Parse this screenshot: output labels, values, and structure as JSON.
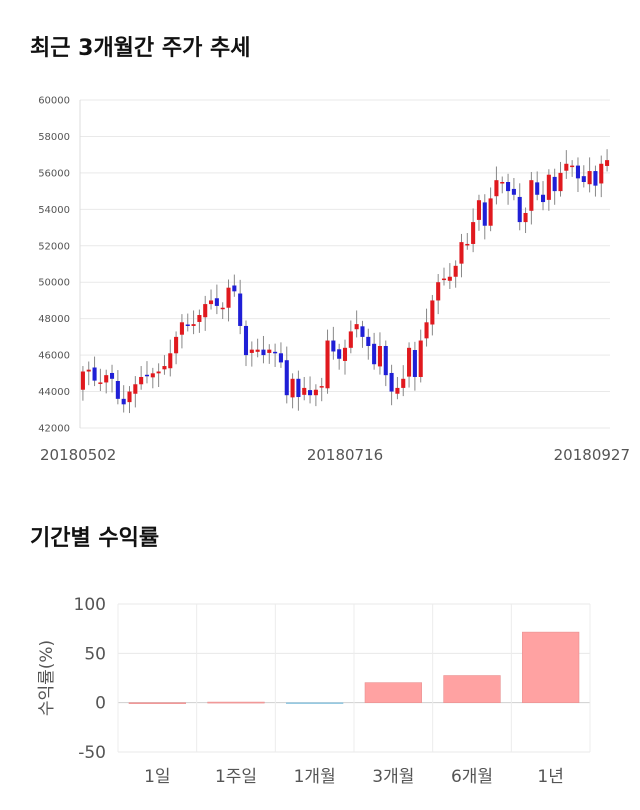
{
  "section1_title": "최근 3개월간 주가 추세",
  "section2_title": "기간별 수익률",
  "chart_data": [
    {
      "type": "candlestick",
      "title": "최근 3개월간 주가 추세",
      "ylim": [
        42000,
        60000
      ],
      "y_ticks": [
        60000,
        58000,
        56000,
        54000,
        52000,
        50000,
        48000,
        46000,
        44000,
        42000
      ],
      "x_tick_labels": [
        "20180502",
        "20180716",
        "20180927"
      ],
      "colors": {
        "up": "#e0191e",
        "down": "#1f1fd6",
        "wick": "#888888"
      },
      "grid": true,
      "close_series": [
        45100,
        45200,
        44600,
        44500,
        44900,
        44700,
        43600,
        43300,
        44000,
        44400,
        44800,
        44900,
        45000,
        45100,
        45400,
        46100,
        47000,
        47800,
        47600,
        47700,
        48200,
        48800,
        49000,
        48700,
        48600,
        49700,
        49500,
        47600,
        46000,
        46300,
        46300,
        46000,
        46300,
        46100,
        45600,
        43800,
        44700,
        43700,
        44200,
        43800,
        44100,
        44300,
        46800,
        46200,
        45800,
        46400,
        47300,
        47700,
        47000,
        46500,
        45500,
        46500,
        44900,
        44000,
        44200,
        44700,
        46400,
        44800,
        46800,
        47800,
        49000,
        50000,
        50200,
        50300,
        50900,
        52200,
        52100,
        53300,
        54500,
        53100,
        54600,
        55600,
        55500,
        55000,
        54800,
        53300,
        53800,
        55600,
        54800,
        54400,
        55900,
        55000,
        56000,
        56500,
        56400,
        55700,
        55500,
        56100,
        55300,
        56500,
        56700
      ]
    },
    {
      "type": "bar",
      "ylabel": "수익률(%)",
      "ylim": [
        -50,
        100
      ],
      "y_ticks": [
        100,
        50,
        0,
        -50
      ],
      "categories": [
        "1일",
        "1주일",
        "1개월",
        "3개월",
        "6개월",
        "1년"
      ],
      "values": [
        0,
        0.6,
        -0.2,
        20.3,
        27.5,
        71.5
      ],
      "colors": {
        "positive": "#ffa2a2",
        "negative": "#9fd3e8"
      },
      "grid": true
    }
  ]
}
